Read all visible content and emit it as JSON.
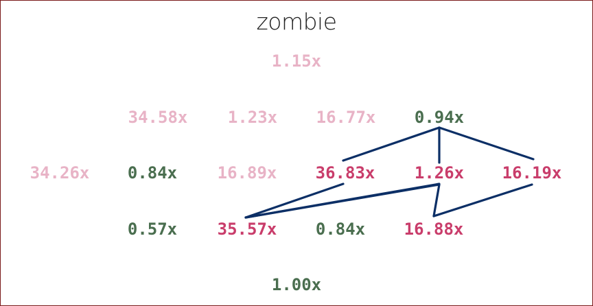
{
  "title": "zombie",
  "colors": {
    "faded": "#e8b3c6",
    "green": "#4a6e4f",
    "red": "#c93d6b",
    "link": "#0c2f66",
    "border": "#7a1a1a"
  },
  "rows": [
    {
      "nodes": [
        {
          "label": "1.15x",
          "style": "faded"
        }
      ]
    },
    {
      "nodes": [
        {
          "label": "34.58x",
          "style": "faded"
        },
        {
          "label": "1.23x",
          "style": "faded"
        },
        {
          "label": "16.77x",
          "style": "faded"
        },
        {
          "label": "0.94x",
          "style": "green"
        }
      ]
    },
    {
      "nodes": [
        {
          "label": "34.26x",
          "style": "faded"
        },
        {
          "label": "0.84x",
          "style": "green"
        },
        {
          "label": "16.89x",
          "style": "faded"
        },
        {
          "label": "36.83x",
          "style": "red"
        },
        {
          "label": "1.26x",
          "style": "red"
        },
        {
          "label": "16.19x",
          "style": "red"
        }
      ]
    },
    {
      "nodes": [
        {
          "label": "0.57x",
          "style": "green"
        },
        {
          "label": "35.57x",
          "style": "red"
        },
        {
          "label": "0.84x",
          "style": "green"
        },
        {
          "label": "16.88x",
          "style": "red"
        }
      ]
    },
    {
      "nodes": [
        {
          "label": "1.00x",
          "style": "green"
        }
      ]
    }
  ]
}
